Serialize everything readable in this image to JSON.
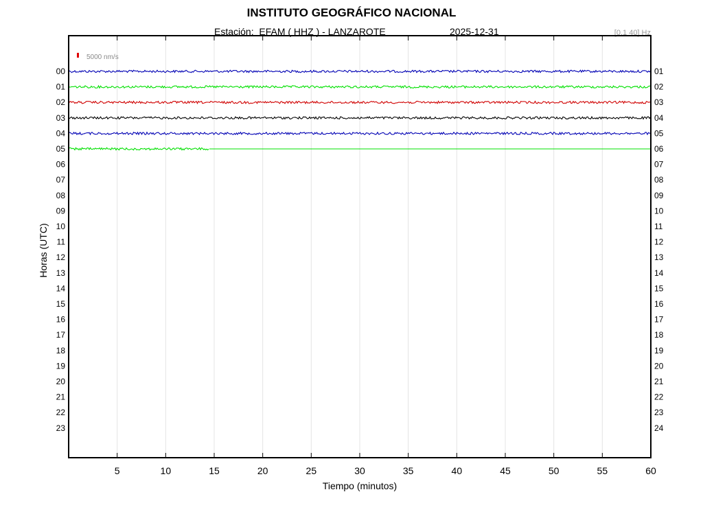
{
  "header": {
    "title": "INSTITUTO GEOGRÁFICO NACIONAL",
    "station_line": "Estación:  EFAM ( HHZ ) - LANZAROTE",
    "date": "2025-12-31",
    "band": "[0.1 40] Hz"
  },
  "chart_data": {
    "type": "line",
    "title": "INSTITUTO GEOGRÁFICO NACIONAL",
    "xlabel": "Tiempo (minutos)",
    "ylabel": "Horas (UTC)",
    "xlim": [
      0,
      60
    ],
    "x_ticks": [
      5,
      10,
      15,
      20,
      25,
      30,
      35,
      40,
      45,
      50,
      55,
      60
    ],
    "left_ticks": [
      "00",
      "01",
      "02",
      "03",
      "04",
      "05",
      "06",
      "07",
      "08",
      "09",
      "10",
      "11",
      "12",
      "13",
      "14",
      "15",
      "16",
      "17",
      "18",
      "19",
      "20",
      "21",
      "22",
      "23"
    ],
    "right_ticks": [
      "01",
      "02",
      "03",
      "04",
      "05",
      "06",
      "07",
      "08",
      "09",
      "10",
      "11",
      "12",
      "13",
      "14",
      "15",
      "16",
      "17",
      "18",
      "19",
      "20",
      "21",
      "22",
      "23",
      "24"
    ],
    "grid": true,
    "scale_bar": {
      "label": "5000 nm/s",
      "color": "#e00000"
    },
    "series": [
      {
        "hour": "00",
        "color": "#0000b4",
        "data_end_minute": 60
      },
      {
        "hour": "01",
        "color": "#00e000",
        "data_end_minute": 60
      },
      {
        "hour": "02",
        "color": "#d00000",
        "data_end_minute": 60
      },
      {
        "hour": "03",
        "color": "#000000",
        "data_end_minute": 60
      },
      {
        "hour": "04",
        "color": "#0000b4",
        "data_end_minute": 60
      },
      {
        "hour": "05",
        "color": "#00e000",
        "data_end_minute": 14.5
      }
    ]
  }
}
